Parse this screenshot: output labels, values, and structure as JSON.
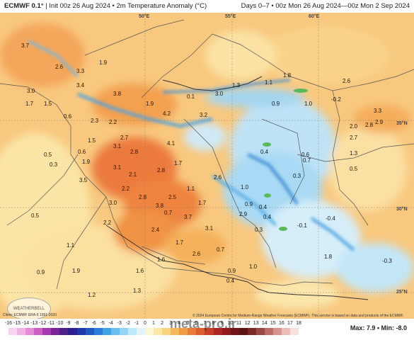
{
  "header": {
    "model": "ECMWF 0.1°",
    "title": "Init 00z 26 Aug 2024 • 2m Temperature Anomaly (°C)",
    "valid": "Days 0–7 • 00z Mon 26 Aug 2024—00z Mon 2 Sep 2024"
  },
  "geo_labels": {
    "lon_50e": "50°E",
    "lon_55e": "55°E",
    "lon_60e": "60°E",
    "lat_35n": "35°N",
    "lat_30n": "30°N",
    "lat_25n": "25°N"
  },
  "map_values": [
    "3.7",
    "2.6",
    "3.3",
    "1.9",
    "3.4",
    "3.0",
    "3.8",
    "1.7",
    "1.5",
    "0.6",
    "2.3",
    "2.2",
    "2.7",
    "2.8",
    "0.1",
    "3.0",
    "1.3",
    "1.1",
    "1.8",
    "2.6",
    "1.9",
    "4.2",
    "3.2",
    "0.9",
    "1.0",
    "-0.2",
    "3.3",
    "2.9",
    "2.8",
    "2.7",
    "1.3",
    "0.5",
    "1.5",
    "4.1",
    "0.4",
    "0.6",
    "0.7",
    "3.1",
    "2.1",
    "2.8",
    "1.7",
    "2.6",
    "0.3",
    "0.5",
    "2.2",
    "2.8",
    "2.5",
    "1.1",
    "1.7",
    "0.7",
    "0.9",
    "0.4",
    "2.2",
    "3.8",
    "3.7",
    "1.7",
    "0.5",
    "3.1",
    "-0.4",
    "-0.1",
    "1.1",
    "1.8",
    "0.7",
    "-0.3",
    "2.4",
    "1.9",
    "1.6",
    "0.9",
    "1.2",
    "1.3",
    "0.4",
    "0.9",
    "1.6",
    "2.6",
    "1.0",
    "0.3",
    "2.9",
    "1.0",
    "0.4",
    "3.1",
    "0.6",
    "0.3",
    "2.0",
    "1.9",
    "3.0",
    "3.5"
  ],
  "footer": {
    "credit_left": "Climo: ECMWF ERA-5 1991-2020",
    "credit_right": "© 2024 European Centre for Medium-Range Weather Forecasts (ECMWF). This service is based on data and products of the ECMWF.",
    "watermark": "meta-pro.ir",
    "logo_text": "WEATHERBELL",
    "max_min": "Max: 7.9 • Min: -8.0"
  },
  "colorbar": {
    "ticks": [
      "-16",
      "-15",
      "-14",
      "-13",
      "-12",
      "-11",
      "-10",
      "-9",
      "-8",
      "-7",
      "-6",
      "-5",
      "-4",
      "-3",
      "-2",
      "-1",
      "0",
      "1",
      "2",
      "3",
      "4",
      "5",
      "6",
      "7",
      "8",
      "9",
      "10",
      "11",
      "12",
      "13",
      "14",
      "15",
      "16",
      "17",
      "18"
    ],
    "colors": [
      "#f7d4ee",
      "#f0b4e4",
      "#e28bd6",
      "#cc5ec4",
      "#a53ab0",
      "#7c2398",
      "#4f1d8c",
      "#2d1f92",
      "#1c3aa8",
      "#1e5cc4",
      "#2a80d8",
      "#3ea2e6",
      "#66bfee",
      "#93d6f4",
      "#bfe8f8",
      "#e3f4fb",
      "#fbf6d6",
      "#fbe7a7",
      "#f9d27c",
      "#f6b95a",
      "#f29b45",
      "#ea7a38",
      "#dc5b2f",
      "#c73d27",
      "#ad2621",
      "#901a1d",
      "#731419",
      "#5d1415",
      "#7a2a28",
      "#9c4945",
      "#bd6d68",
      "#d9938e",
      "#eebcb8",
      "#f8e0dd"
    ]
  }
}
